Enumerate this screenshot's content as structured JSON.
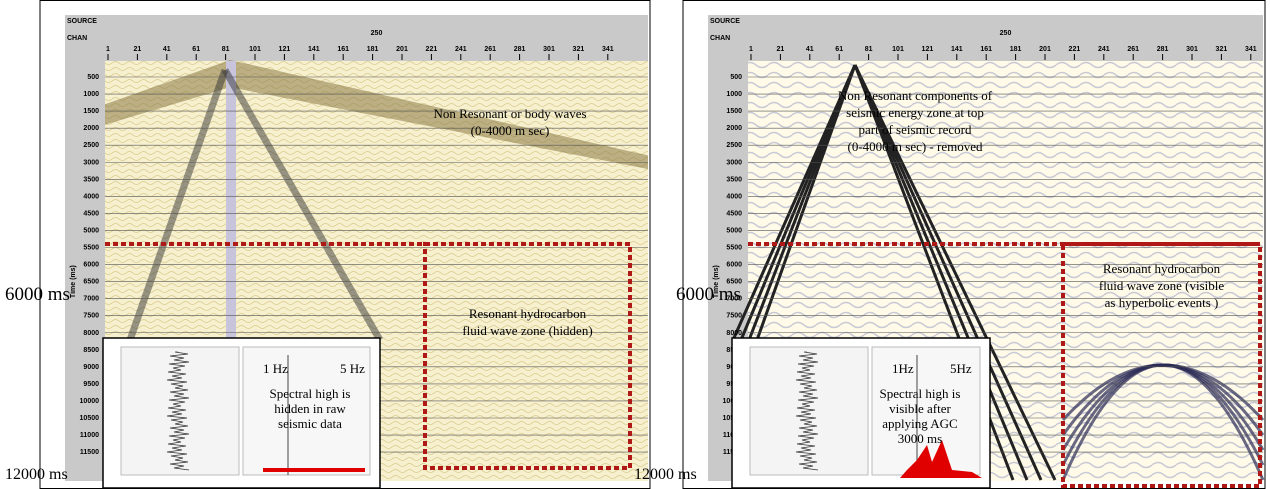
{
  "axis": {
    "source_label": "SOURCE",
    "chan_label": "CHAN",
    "source_value": "250",
    "channels": [
      "1",
      "21",
      "41",
      "61",
      "81",
      "101",
      "121",
      "141",
      "161",
      "181",
      "201",
      "221",
      "241",
      "261",
      "281",
      "301",
      "321",
      "341"
    ],
    "time_label": "Time (ms)",
    "times": [
      "500",
      "1000",
      "1500",
      "2000",
      "2500",
      "3000",
      "3500",
      "4000",
      "4500",
      "5000",
      "5500",
      "6000",
      "6500",
      "7000",
      "7500",
      "8000",
      "8500",
      "9000",
      "9500",
      "10000",
      "10500",
      "11000",
      "11500"
    ]
  },
  "panels": [
    {
      "annotation_top": "Non Resonant or  body waves (0-4000 m sec)",
      "annotation_zone": "Resonant hydrocarbon fluid wave zone (hidden)",
      "marker_mid": "6000 ms",
      "marker_end": "12000 ms",
      "inset": {
        "low": "1 Hz",
        "high": "5 Hz",
        "text": "Spectral high is hidden in raw seismic data"
      }
    },
    {
      "annotation_top": "Non Resonant components of seismic energy zone at top part of seismic record (0-4000 m sec) - removed",
      "annotation_zone": "Resonant hydrocarbon fluid wave zone (visible as hyperbolic events )",
      "marker_mid": "6000 ms",
      "marker_end": "12000 ms",
      "inset": {
        "low": "1Hz",
        "high": "5Hz",
        "text": "Spectral high is visible after applying AGC 3000 ms"
      }
    }
  ]
}
